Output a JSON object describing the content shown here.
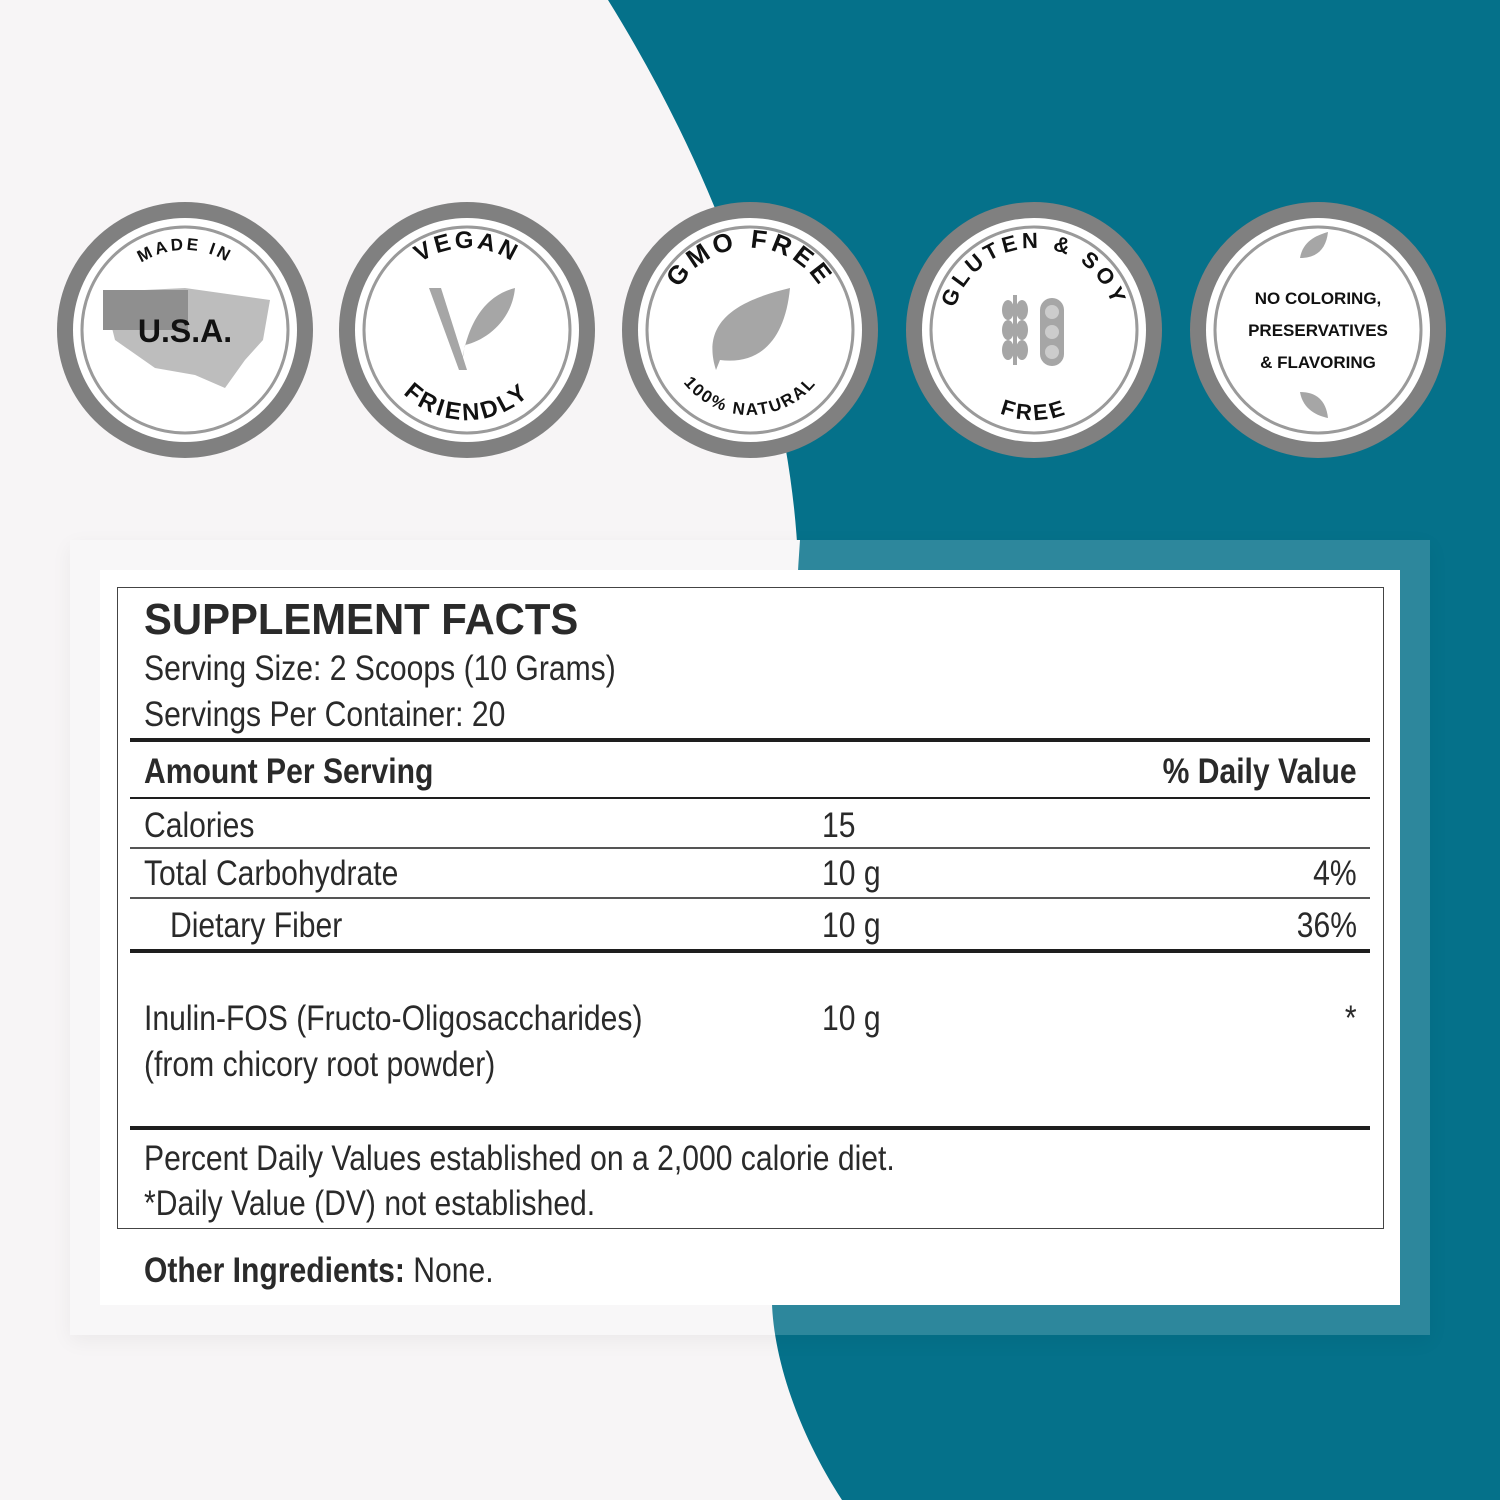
{
  "colors": {
    "background": "#f7f5f6",
    "teal": "#05718a",
    "badge_ring": "#808080",
    "text": "#222222"
  },
  "badges": [
    {
      "top": "MADE IN",
      "center": "U.S.A.",
      "icon": "usa-flag-map-icon"
    },
    {
      "top": "VEGAN",
      "bottom": "FRIENDLY",
      "icon": "vegan-v-leaf-icon"
    },
    {
      "top": "GMO FREE",
      "bottom": "100% NATURAL",
      "icon": "leaf-icon"
    },
    {
      "top": "GLUTEN & SOY",
      "bottom": "FREE",
      "icon": "wheat-soybean-icon"
    },
    {
      "lines": [
        "NO COLORING,",
        "PRESERVATIVES",
        "& FLAVORING"
      ],
      "icon": "leaves-icon"
    }
  ],
  "facts": {
    "title": "SUPPLEMENT FACTS",
    "serving_size": "Serving Size: 2 Scoops (10 Grams)",
    "servings_per_container": "Servings Per Container: 20",
    "header_amount": "Amount Per Serving",
    "header_dv": "% Daily Value",
    "rows": [
      {
        "name": "Calories",
        "amount": "15",
        "dv": ""
      },
      {
        "name": "Total Carbohydrate",
        "amount": "10 g",
        "dv": "4%"
      },
      {
        "name": "Dietary Fiber",
        "amount": "10 g",
        "dv": "36%"
      },
      {
        "name": "Inulin-FOS (Fructo-Oligosaccharides)",
        "name2": "(from chicory root powder)",
        "amount": "10 g",
        "dv": "*"
      }
    ],
    "footnote1": "Percent Daily Values established on a 2,000 calorie diet.",
    "footnote2": "*Daily Value (DV) not established.",
    "other_label": "Other Ingredients:",
    "other_value": " None."
  }
}
